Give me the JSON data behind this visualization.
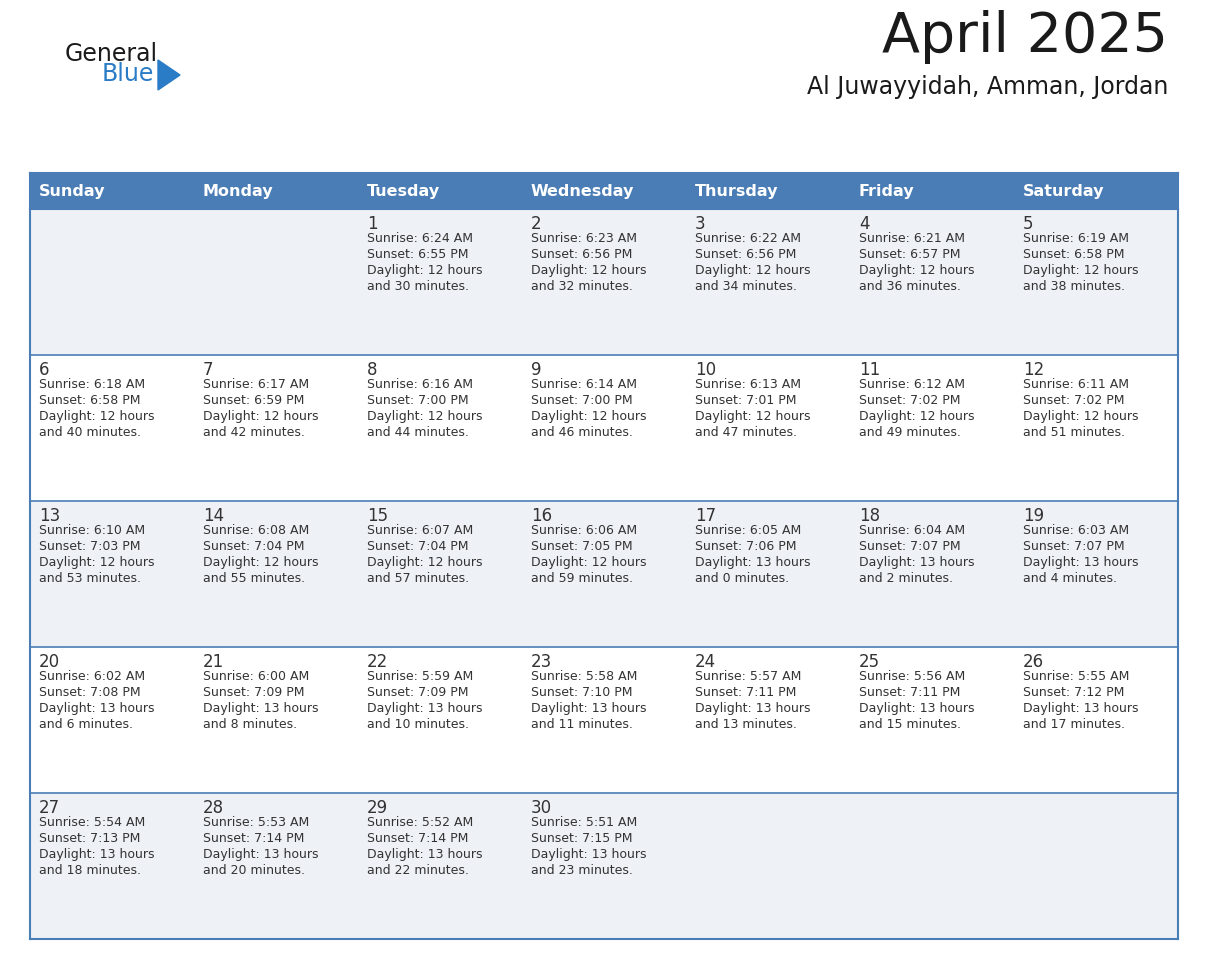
{
  "title": "April 2025",
  "subtitle": "Al Juwayyidah, Amman, Jordan",
  "days_of_week": [
    "Sunday",
    "Monday",
    "Tuesday",
    "Wednesday",
    "Thursday",
    "Friday",
    "Saturday"
  ],
  "header_bg": "#4a7db5",
  "header_text": "#ffffff",
  "row_bg_light": "#eef2f7",
  "row_bg_white": "#ffffff",
  "border_color": "#4a7db5",
  "text_color": "#333333",
  "calendar": [
    [
      {
        "day": "",
        "info": ""
      },
      {
        "day": "",
        "info": ""
      },
      {
        "day": "1",
        "info": "Sunrise: 6:24 AM\nSunset: 6:55 PM\nDaylight: 12 hours\nand 30 minutes."
      },
      {
        "day": "2",
        "info": "Sunrise: 6:23 AM\nSunset: 6:56 PM\nDaylight: 12 hours\nand 32 minutes."
      },
      {
        "day": "3",
        "info": "Sunrise: 6:22 AM\nSunset: 6:56 PM\nDaylight: 12 hours\nand 34 minutes."
      },
      {
        "day": "4",
        "info": "Sunrise: 6:21 AM\nSunset: 6:57 PM\nDaylight: 12 hours\nand 36 minutes."
      },
      {
        "day": "5",
        "info": "Sunrise: 6:19 AM\nSunset: 6:58 PM\nDaylight: 12 hours\nand 38 minutes."
      }
    ],
    [
      {
        "day": "6",
        "info": "Sunrise: 6:18 AM\nSunset: 6:58 PM\nDaylight: 12 hours\nand 40 minutes."
      },
      {
        "day": "7",
        "info": "Sunrise: 6:17 AM\nSunset: 6:59 PM\nDaylight: 12 hours\nand 42 minutes."
      },
      {
        "day": "8",
        "info": "Sunrise: 6:16 AM\nSunset: 7:00 PM\nDaylight: 12 hours\nand 44 minutes."
      },
      {
        "day": "9",
        "info": "Sunrise: 6:14 AM\nSunset: 7:00 PM\nDaylight: 12 hours\nand 46 minutes."
      },
      {
        "day": "10",
        "info": "Sunrise: 6:13 AM\nSunset: 7:01 PM\nDaylight: 12 hours\nand 47 minutes."
      },
      {
        "day": "11",
        "info": "Sunrise: 6:12 AM\nSunset: 7:02 PM\nDaylight: 12 hours\nand 49 minutes."
      },
      {
        "day": "12",
        "info": "Sunrise: 6:11 AM\nSunset: 7:02 PM\nDaylight: 12 hours\nand 51 minutes."
      }
    ],
    [
      {
        "day": "13",
        "info": "Sunrise: 6:10 AM\nSunset: 7:03 PM\nDaylight: 12 hours\nand 53 minutes."
      },
      {
        "day": "14",
        "info": "Sunrise: 6:08 AM\nSunset: 7:04 PM\nDaylight: 12 hours\nand 55 minutes."
      },
      {
        "day": "15",
        "info": "Sunrise: 6:07 AM\nSunset: 7:04 PM\nDaylight: 12 hours\nand 57 minutes."
      },
      {
        "day": "16",
        "info": "Sunrise: 6:06 AM\nSunset: 7:05 PM\nDaylight: 12 hours\nand 59 minutes."
      },
      {
        "day": "17",
        "info": "Sunrise: 6:05 AM\nSunset: 7:06 PM\nDaylight: 13 hours\nand 0 minutes."
      },
      {
        "day": "18",
        "info": "Sunrise: 6:04 AM\nSunset: 7:07 PM\nDaylight: 13 hours\nand 2 minutes."
      },
      {
        "day": "19",
        "info": "Sunrise: 6:03 AM\nSunset: 7:07 PM\nDaylight: 13 hours\nand 4 minutes."
      }
    ],
    [
      {
        "day": "20",
        "info": "Sunrise: 6:02 AM\nSunset: 7:08 PM\nDaylight: 13 hours\nand 6 minutes."
      },
      {
        "day": "21",
        "info": "Sunrise: 6:00 AM\nSunset: 7:09 PM\nDaylight: 13 hours\nand 8 minutes."
      },
      {
        "day": "22",
        "info": "Sunrise: 5:59 AM\nSunset: 7:09 PM\nDaylight: 13 hours\nand 10 minutes."
      },
      {
        "day": "23",
        "info": "Sunrise: 5:58 AM\nSunset: 7:10 PM\nDaylight: 13 hours\nand 11 minutes."
      },
      {
        "day": "24",
        "info": "Sunrise: 5:57 AM\nSunset: 7:11 PM\nDaylight: 13 hours\nand 13 minutes."
      },
      {
        "day": "25",
        "info": "Sunrise: 5:56 AM\nSunset: 7:11 PM\nDaylight: 13 hours\nand 15 minutes."
      },
      {
        "day": "26",
        "info": "Sunrise: 5:55 AM\nSunset: 7:12 PM\nDaylight: 13 hours\nand 17 minutes."
      }
    ],
    [
      {
        "day": "27",
        "info": "Sunrise: 5:54 AM\nSunset: 7:13 PM\nDaylight: 13 hours\nand 18 minutes."
      },
      {
        "day": "28",
        "info": "Sunrise: 5:53 AM\nSunset: 7:14 PM\nDaylight: 13 hours\nand 20 minutes."
      },
      {
        "day": "29",
        "info": "Sunrise: 5:52 AM\nSunset: 7:14 PM\nDaylight: 13 hours\nand 22 minutes."
      },
      {
        "day": "30",
        "info": "Sunrise: 5:51 AM\nSunset: 7:15 PM\nDaylight: 13 hours\nand 23 minutes."
      },
      {
        "day": "",
        "info": ""
      },
      {
        "day": "",
        "info": ""
      },
      {
        "day": "",
        "info": ""
      }
    ]
  ],
  "logo_color1": "#1a1a1a",
  "logo_color2": "#2a7cc7",
  "logo_triangle_color": "#2a7cc7",
  "title_color": "#1a1a1a",
  "subtitle_color": "#1a1a1a"
}
